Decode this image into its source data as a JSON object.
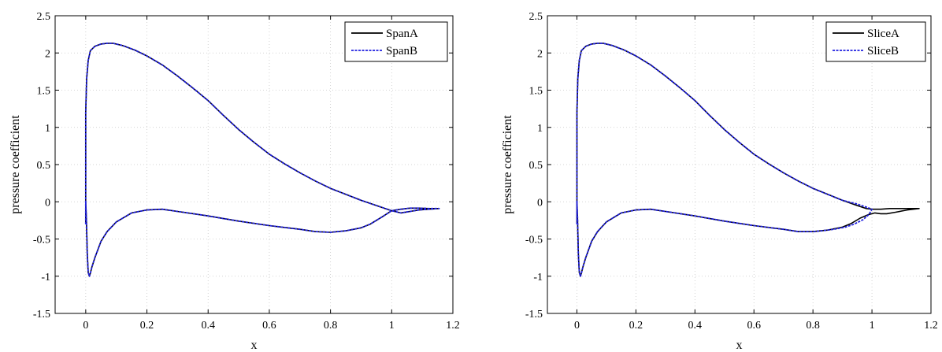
{
  "chart_data": [
    {
      "type": "line",
      "xlabel": "x",
      "ylabel": "pressure coefficient",
      "xlim": [
        -0.1,
        1.2
      ],
      "ylim": [
        -1.5,
        2.5
      ],
      "xticks": [
        "0",
        "0.2",
        "0.4",
        "0.6",
        "0.8",
        "1",
        "1.2"
      ],
      "yticks": [
        "-1.5",
        "-1",
        "-0.5",
        "0",
        "0.5",
        "1",
        "1.5",
        "2",
        "2.5"
      ],
      "grid": true,
      "legend_position": "top-right",
      "series": [
        {
          "name": "SpanA",
          "color": "#000000",
          "style": "solid",
          "x": [
            0.0,
            0.0,
            0.0,
            0.003,
            0.008,
            0.015,
            0.03,
            0.05,
            0.07,
            0.09,
            0.12,
            0.16,
            0.2,
            0.25,
            0.3,
            0.35,
            0.4,
            0.45,
            0.5,
            0.55,
            0.6,
            0.65,
            0.7,
            0.75,
            0.8,
            0.85,
            0.9,
            0.95,
            1.0,
            1.03,
            1.06,
            1.09,
            1.12,
            1.155,
            1.12,
            1.09,
            1.06,
            1.03,
            1.01,
            1.0,
            0.97,
            0.93,
            0.9,
            0.85,
            0.8,
            0.75,
            0.7,
            0.6,
            0.5,
            0.4,
            0.3,
            0.25,
            0.2,
            0.15,
            0.1,
            0.07,
            0.05,
            0.03,
            0.02,
            0.015,
            0.012,
            0.008,
            0.005,
            0.002,
            0.0
          ],
          "y": [
            -0.3,
            0.5,
            1.2,
            1.65,
            1.9,
            2.03,
            2.09,
            2.12,
            2.13,
            2.13,
            2.1,
            2.04,
            1.96,
            1.84,
            1.69,
            1.53,
            1.36,
            1.16,
            0.97,
            0.8,
            0.64,
            0.51,
            0.39,
            0.28,
            0.18,
            0.1,
            0.02,
            -0.05,
            -0.12,
            -0.1,
            -0.085,
            -0.085,
            -0.09,
            -0.09,
            -0.1,
            -0.11,
            -0.13,
            -0.15,
            -0.13,
            -0.12,
            -0.2,
            -0.3,
            -0.35,
            -0.39,
            -0.41,
            -0.4,
            -0.37,
            -0.32,
            -0.26,
            -0.19,
            -0.13,
            -0.1,
            -0.11,
            -0.15,
            -0.27,
            -0.4,
            -0.53,
            -0.75,
            -0.88,
            -0.96,
            -1.0,
            -0.95,
            -0.7,
            -0.2,
            0.0
          ]
        },
        {
          "name": "SpanB",
          "color": "#2020e0",
          "style": "dashed",
          "x": [
            0.0,
            0.0,
            0.0,
            0.003,
            0.008,
            0.015,
            0.03,
            0.05,
            0.07,
            0.09,
            0.12,
            0.16,
            0.2,
            0.25,
            0.3,
            0.35,
            0.4,
            0.45,
            0.5,
            0.55,
            0.6,
            0.65,
            0.7,
            0.75,
            0.8,
            0.85,
            0.9,
            0.95,
            1.0,
            1.03,
            1.06,
            1.09,
            1.12,
            1.155,
            1.12,
            1.09,
            1.06,
            1.03,
            1.01,
            1.0,
            0.97,
            0.93,
            0.9,
            0.85,
            0.8,
            0.75,
            0.7,
            0.6,
            0.5,
            0.4,
            0.3,
            0.25,
            0.2,
            0.15,
            0.1,
            0.07,
            0.05,
            0.03,
            0.02,
            0.015,
            0.012,
            0.008,
            0.005,
            0.002,
            0.0
          ],
          "y": [
            -0.3,
            0.5,
            1.2,
            1.65,
            1.9,
            2.03,
            2.09,
            2.12,
            2.13,
            2.13,
            2.1,
            2.04,
            1.96,
            1.84,
            1.69,
            1.53,
            1.36,
            1.16,
            0.97,
            0.8,
            0.64,
            0.51,
            0.39,
            0.28,
            0.18,
            0.1,
            0.02,
            -0.05,
            -0.12,
            -0.1,
            -0.085,
            -0.085,
            -0.09,
            -0.09,
            -0.1,
            -0.11,
            -0.13,
            -0.15,
            -0.13,
            -0.12,
            -0.2,
            -0.3,
            -0.35,
            -0.39,
            -0.41,
            -0.4,
            -0.37,
            -0.32,
            -0.26,
            -0.19,
            -0.13,
            -0.1,
            -0.11,
            -0.15,
            -0.27,
            -0.4,
            -0.53,
            -0.75,
            -0.88,
            -0.96,
            -1.0,
            -0.95,
            -0.7,
            -0.2,
            0.0
          ]
        }
      ]
    },
    {
      "type": "line",
      "xlabel": "x",
      "ylabel": "pressure coefficient",
      "xlim": [
        -0.1,
        1.2
      ],
      "ylim": [
        -1.5,
        2.5
      ],
      "xticks": [
        "0",
        "0.2",
        "0.4",
        "0.6",
        "0.8",
        "1",
        "1.2"
      ],
      "yticks": [
        "-1.5",
        "-1",
        "-0.5",
        "0",
        "0.5",
        "1",
        "1.5",
        "2",
        "2.5"
      ],
      "grid": true,
      "legend_position": "top-right",
      "series": [
        {
          "name": "SliceA",
          "color": "#000000",
          "style": "solid",
          "x": [
            0.0,
            0.0,
            0.0,
            0.003,
            0.008,
            0.015,
            0.03,
            0.05,
            0.07,
            0.09,
            0.12,
            0.16,
            0.2,
            0.25,
            0.3,
            0.35,
            0.4,
            0.45,
            0.5,
            0.55,
            0.6,
            0.65,
            0.7,
            0.75,
            0.8,
            0.85,
            0.9,
            0.95,
            0.98,
            1.0,
            1.03,
            1.06,
            1.1,
            1.14,
            1.16,
            1.12,
            1.08,
            1.05,
            1.03,
            1.01,
            0.99,
            0.96,
            0.93,
            0.9,
            0.85,
            0.8,
            0.75,
            0.7,
            0.6,
            0.5,
            0.4,
            0.3,
            0.25,
            0.2,
            0.15,
            0.1,
            0.07,
            0.05,
            0.03,
            0.02,
            0.015,
            0.012,
            0.008,
            0.005,
            0.002,
            0.0
          ],
          "y": [
            -0.3,
            0.5,
            1.2,
            1.65,
            1.9,
            2.03,
            2.09,
            2.12,
            2.13,
            2.13,
            2.1,
            2.04,
            1.96,
            1.84,
            1.69,
            1.53,
            1.36,
            1.16,
            0.97,
            0.8,
            0.64,
            0.51,
            0.39,
            0.28,
            0.18,
            0.1,
            0.02,
            -0.05,
            -0.09,
            -0.1,
            -0.1,
            -0.09,
            -0.09,
            -0.09,
            -0.09,
            -0.11,
            -0.14,
            -0.16,
            -0.16,
            -0.15,
            -0.17,
            -0.22,
            -0.29,
            -0.34,
            -0.38,
            -0.4,
            -0.4,
            -0.37,
            -0.32,
            -0.26,
            -0.19,
            -0.13,
            -0.1,
            -0.11,
            -0.15,
            -0.27,
            -0.4,
            -0.53,
            -0.75,
            -0.88,
            -0.96,
            -1.0,
            -0.95,
            -0.7,
            -0.2,
            0.0
          ]
        },
        {
          "name": "SliceB",
          "color": "#2020e0",
          "style": "dashed",
          "x": [
            0.0,
            0.0,
            0.0,
            0.003,
            0.008,
            0.015,
            0.03,
            0.05,
            0.07,
            0.09,
            0.12,
            0.16,
            0.2,
            0.25,
            0.3,
            0.35,
            0.4,
            0.45,
            0.5,
            0.55,
            0.6,
            0.65,
            0.7,
            0.75,
            0.8,
            0.85,
            0.9,
            0.95,
            0.98,
            1.0,
            0.99,
            0.97,
            0.94,
            0.91,
            0.87,
            0.83,
            0.8,
            0.75,
            0.7,
            0.6,
            0.5,
            0.4,
            0.3,
            0.25,
            0.2,
            0.15,
            0.1,
            0.07,
            0.05,
            0.03,
            0.02,
            0.015,
            0.012,
            0.008,
            0.005,
            0.002,
            0.0
          ],
          "y": [
            -0.3,
            0.5,
            1.2,
            1.65,
            1.9,
            2.03,
            2.09,
            2.12,
            2.13,
            2.13,
            2.1,
            2.04,
            1.96,
            1.84,
            1.69,
            1.53,
            1.36,
            1.16,
            0.97,
            0.8,
            0.64,
            0.51,
            0.39,
            0.28,
            0.18,
            0.1,
            0.02,
            -0.03,
            -0.07,
            -0.1,
            -0.17,
            -0.24,
            -0.3,
            -0.34,
            -0.37,
            -0.39,
            -0.4,
            -0.4,
            -0.37,
            -0.32,
            -0.26,
            -0.19,
            -0.13,
            -0.1,
            -0.11,
            -0.15,
            -0.27,
            -0.4,
            -0.53,
            -0.75,
            -0.88,
            -0.96,
            -1.0,
            -0.95,
            -0.7,
            -0.2,
            0.0
          ]
        }
      ]
    }
  ]
}
